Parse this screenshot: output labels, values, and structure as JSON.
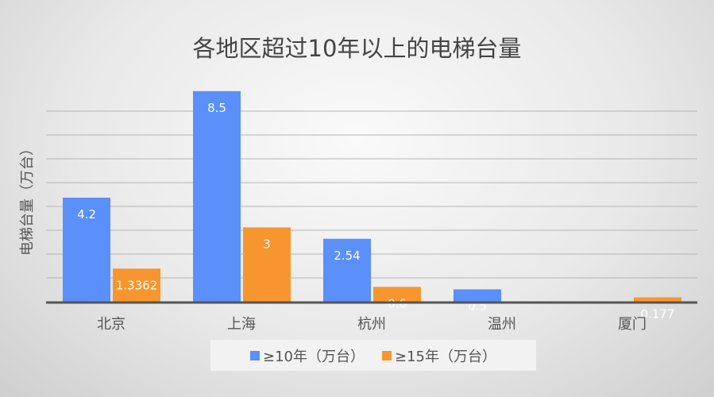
{
  "chart_data": {
    "type": "bar",
    "title": "各地区超过10年以上的电梯台量",
    "xlabel": "",
    "ylabel": "电梯台量（万台）",
    "categories": [
      "北京",
      "上海",
      "杭州",
      "温州",
      "厦门"
    ],
    "series": [
      {
        "name": "≥10年（万台）",
        "color": "#5b8ff9",
        "values": [
          4.2,
          8.5,
          2.54,
          0.5,
          null
        ],
        "labels": [
          "4.2",
          "8.5",
          "2.54",
          "0.5",
          null
        ]
      },
      {
        "name": "≥15年（万台）",
        "color": "#f7962f",
        "values": [
          1.3362,
          3,
          0.6,
          null,
          0.177
        ],
        "labels": [
          "1.3362",
          "3",
          "0.6",
          null,
          "0.177"
        ]
      }
    ],
    "ylim": [
      0,
      9
    ],
    "grid": true,
    "legend": "bottom"
  }
}
